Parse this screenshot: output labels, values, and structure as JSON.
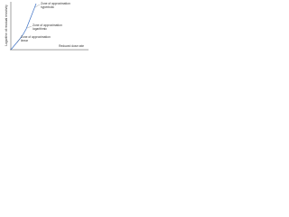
{
  "axes": {
    "y_label": "Logarithm of residual resistivity",
    "x_label": "Reduced dose rate"
  },
  "zones": [
    {
      "lines": [
        "Zone of approximation",
        "hyperbolic"
      ]
    },
    {
      "lines": [
        "Zone of approximation",
        "logarithmic"
      ]
    },
    {
      "lines": [
        "Zone of approximation",
        "linear"
      ]
    }
  ]
}
